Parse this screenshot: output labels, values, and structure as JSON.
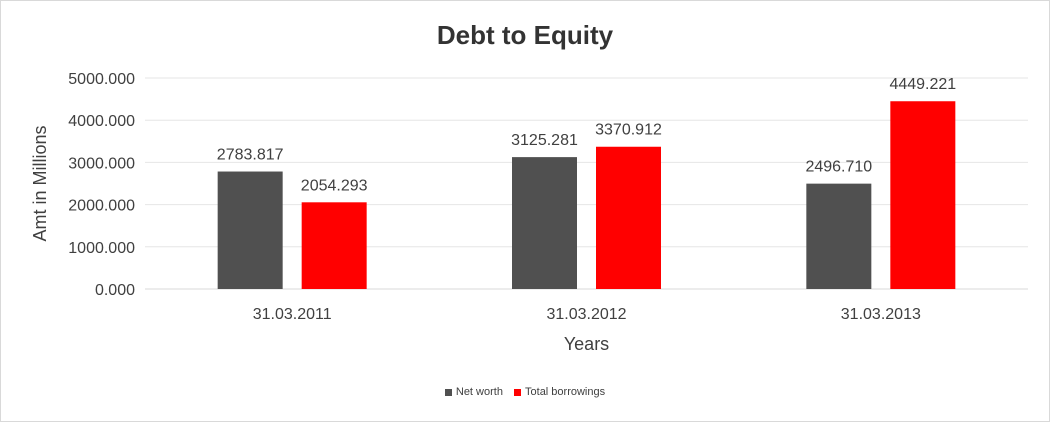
{
  "chart_data": {
    "type": "bar",
    "title": "Debt to Equity",
    "xlabel": "Years",
    "ylabel": "Amt in Millions",
    "categories": [
      "31.03.2011",
      "31.03.2012",
      "31.03.2013"
    ],
    "series": [
      {
        "name": "Net worth",
        "color": "#505050",
        "values": [
          2783.817,
          3125.281,
          2496.71
        ]
      },
      {
        "name": "Total borrowings",
        "color": "#ff0000",
        "values": [
          2054.293,
          3370.912,
          4449.221
        ]
      }
    ],
    "data_labels": [
      [
        "2783.817",
        "3125.281",
        "2496.710"
      ],
      [
        "2054.293",
        "3370.912",
        "4449.221"
      ]
    ],
    "ylim": [
      0,
      5000
    ],
    "yticks": [
      "0.000",
      "1000.000",
      "2000.000",
      "3000.000",
      "4000.000",
      "5000.000"
    ],
    "grid": true,
    "legend_position": "bottom"
  }
}
